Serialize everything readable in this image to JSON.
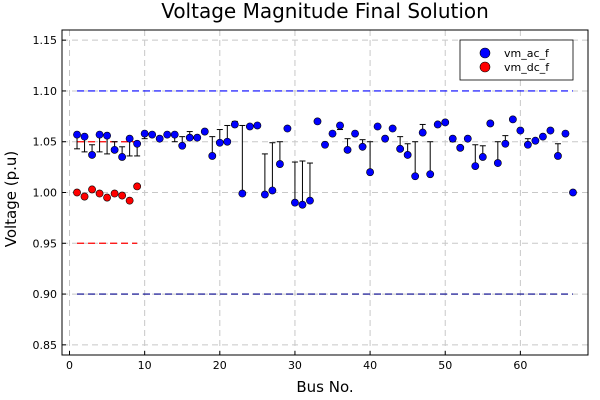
{
  "chart_data": {
    "type": "scatter",
    "title": "Voltage Magnitude Final Solution",
    "xlabel": "Bus No.",
    "ylabel": "Voltage (p.u)",
    "xlim": [
      -1,
      69
    ],
    "ylim": [
      0.84,
      1.16
    ],
    "xticks": [
      0,
      10,
      20,
      30,
      40,
      50,
      60
    ],
    "yticks": [
      0.85,
      0.9,
      0.95,
      1.0,
      1.05,
      1.1,
      1.15
    ],
    "ytick_labels": [
      "0.85",
      "0.90",
      "0.95",
      "1.00",
      "1.05",
      "1.10",
      "1.15"
    ],
    "grid": true,
    "legend_position": "top-right",
    "series": [
      {
        "name": "vm_ac_f",
        "color": "#0000ff",
        "points": [
          [
            1,
            1.057
          ],
          [
            2,
            1.055
          ],
          [
            3,
            1.037
          ],
          [
            4,
            1.057
          ],
          [
            5,
            1.056
          ],
          [
            6,
            1.042
          ],
          [
            7,
            1.035
          ],
          [
            8,
            1.053
          ],
          [
            9,
            1.048
          ],
          [
            10,
            1.058
          ],
          [
            11,
            1.057
          ],
          [
            12,
            1.053
          ],
          [
            13,
            1.057
          ],
          [
            14,
            1.057
          ],
          [
            15,
            1.046
          ],
          [
            16,
            1.054
          ],
          [
            17,
            1.054
          ],
          [
            18,
            1.06
          ],
          [
            19,
            1.036
          ],
          [
            20,
            1.049
          ],
          [
            21,
            1.05
          ],
          [
            22,
            1.067
          ],
          [
            23,
            0.999
          ],
          [
            24,
            1.065
          ],
          [
            25,
            1.066
          ],
          [
            26,
            0.998
          ],
          [
            27,
            1.002
          ],
          [
            28,
            1.028
          ],
          [
            29,
            1.063
          ],
          [
            30,
            0.99
          ],
          [
            31,
            0.988
          ],
          [
            32,
            0.992
          ],
          [
            33,
            1.07
          ],
          [
            34,
            1.047
          ],
          [
            35,
            1.058
          ],
          [
            36,
            1.066
          ],
          [
            37,
            1.042
          ],
          [
            38,
            1.058
          ],
          [
            39,
            1.045
          ],
          [
            40,
            1.02
          ],
          [
            41,
            1.065
          ],
          [
            42,
            1.053
          ],
          [
            43,
            1.063
          ],
          [
            44,
            1.043
          ],
          [
            45,
            1.037
          ],
          [
            46,
            1.016
          ],
          [
            47,
            1.059
          ],
          [
            48,
            1.018
          ],
          [
            49,
            1.067
          ],
          [
            50,
            1.069
          ],
          [
            51,
            1.053
          ],
          [
            52,
            1.044
          ],
          [
            53,
            1.053
          ],
          [
            54,
            1.026
          ],
          [
            55,
            1.035
          ],
          [
            56,
            1.068
          ],
          [
            57,
            1.029
          ],
          [
            58,
            1.048
          ],
          [
            59,
            1.072
          ],
          [
            60,
            1.061
          ],
          [
            61,
            1.047
          ],
          [
            62,
            1.051
          ],
          [
            63,
            1.055
          ],
          [
            64,
            1.061
          ],
          [
            65,
            1.036
          ],
          [
            66,
            1.058
          ],
          [
            67,
            1.0
          ]
        ]
      },
      {
        "name": "vm_dc_f",
        "color": "#ff0000",
        "points": [
          [
            1,
            1.0
          ],
          [
            2,
            0.996
          ],
          [
            3,
            1.003
          ],
          [
            4,
            0.999
          ],
          [
            5,
            0.995
          ],
          [
            6,
            0.999
          ],
          [
            7,
            0.997
          ],
          [
            8,
            0.992
          ],
          [
            9,
            1.006
          ]
        ]
      }
    ],
    "limit_lines": [
      {
        "y": 1.1,
        "x_range": [
          1,
          67
        ],
        "color": "#0000ff"
      },
      {
        "y": 0.9,
        "x_range": [
          1,
          67
        ],
        "color": "#00008b"
      },
      {
        "y": 1.05,
        "x_range": [
          1,
          9
        ],
        "color": "#ff0000"
      },
      {
        "y": 0.95,
        "x_range": [
          1,
          9
        ],
        "color": "#ff0000"
      }
    ],
    "whiskers": [
      [
        1,
        1.057,
        1.043
      ],
      [
        2,
        1.055,
        1.04
      ],
      [
        3,
        1.037,
        1.047
      ],
      [
        4,
        1.057,
        1.04
      ],
      [
        5,
        1.056,
        1.038
      ],
      [
        6,
        1.042,
        1.05
      ],
      [
        7,
        1.035,
        1.045
      ],
      [
        8,
        1.053,
        1.036
      ],
      [
        9,
        1.048,
        1.036
      ],
      [
        10,
        1.058,
        1.053
      ],
      [
        14,
        1.057,
        1.05
      ],
      [
        15,
        1.046,
        1.055
      ],
      [
        16,
        1.054,
        1.06
      ],
      [
        19,
        1.036,
        1.055
      ],
      [
        20,
        1.049,
        1.062
      ],
      [
        21,
        1.05,
        1.066
      ],
      [
        22,
        1.067,
        1.07
      ],
      [
        23,
        0.999,
        1.066
      ],
      [
        26,
        0.998,
        1.038
      ],
      [
        27,
        1.002,
        1.049
      ],
      [
        28,
        1.028,
        1.05
      ],
      [
        30,
        0.99,
        1.03
      ],
      [
        31,
        0.988,
        1.031
      ],
      [
        32,
        0.992,
        1.029
      ],
      [
        36,
        1.066,
        1.062
      ],
      [
        37,
        1.042,
        1.053
      ],
      [
        39,
        1.045,
        1.052
      ],
      [
        40,
        1.02,
        1.05
      ],
      [
        44,
        1.043,
        1.055
      ],
      [
        45,
        1.037,
        1.048
      ],
      [
        46,
        1.016,
        1.05
      ],
      [
        47,
        1.059,
        1.067
      ],
      [
        48,
        1.018,
        1.05
      ],
      [
        51,
        1.053,
        1.05
      ],
      [
        54,
        1.026,
        1.047
      ],
      [
        55,
        1.035,
        1.046
      ],
      [
        56,
        1.068,
        1.066
      ],
      [
        57,
        1.029,
        1.05
      ],
      [
        58,
        1.048,
        1.056
      ],
      [
        61,
        1.047,
        1.053
      ],
      [
        65,
        1.036,
        1.048
      ],
      [
        66,
        1.058,
        1.06
      ]
    ]
  }
}
